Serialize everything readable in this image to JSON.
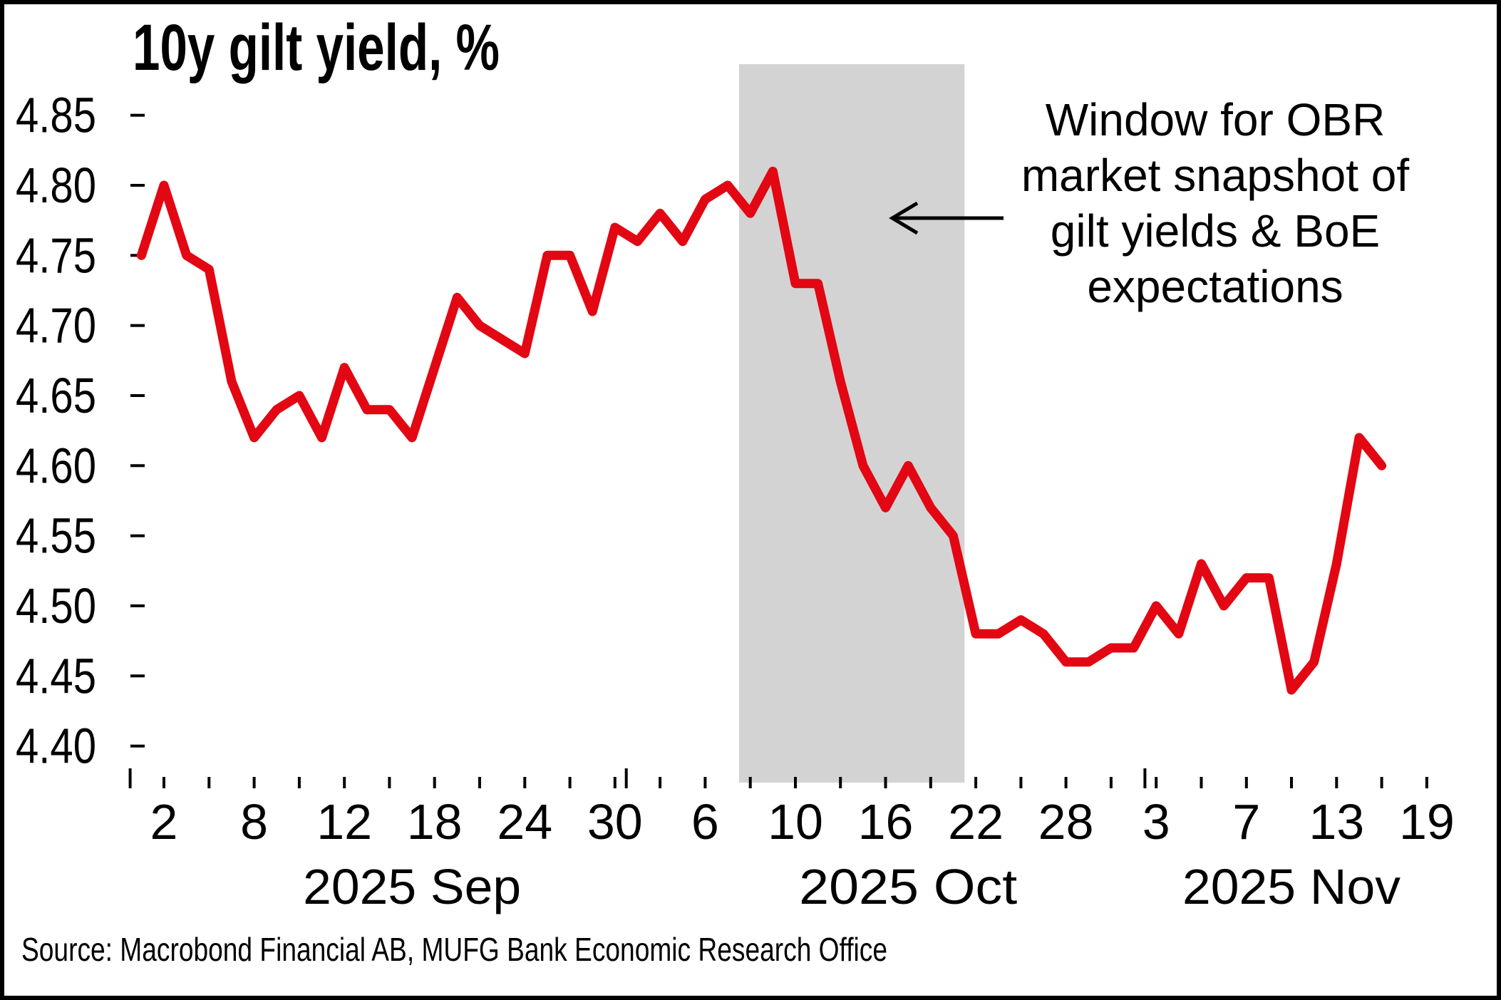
{
  "chart_data": {
    "type": "line",
    "title": "10y gilt yield, %",
    "source": "Source: Macrobond Financial AB, MUFG Bank Economic Research Office",
    "colors": {
      "line": "#e30613",
      "shaded_window": "#d3d3d3",
      "text": "#000000",
      "background": "#ffffff",
      "border": "#000000"
    },
    "ylim": [
      4.38,
      4.89
    ],
    "yticks": [
      4.4,
      4.45,
      4.5,
      4.55,
      4.6,
      4.65,
      4.7,
      4.75,
      4.8,
      4.85
    ],
    "grid": "off",
    "legend": "none",
    "series_name": "10y gilt yield",
    "dates": [
      "2025-09-01",
      "2025-09-02",
      "2025-09-03",
      "2025-09-04",
      "2025-09-05",
      "2025-09-08",
      "2025-09-09",
      "2025-09-10",
      "2025-09-11",
      "2025-09-12",
      "2025-09-15",
      "2025-09-16",
      "2025-09-17",
      "2025-09-18",
      "2025-09-19",
      "2025-09-22",
      "2025-09-23",
      "2025-09-24",
      "2025-09-25",
      "2025-09-26",
      "2025-09-29",
      "2025-09-30",
      "2025-10-01",
      "2025-10-02",
      "2025-10-03",
      "2025-10-06",
      "2025-10-07",
      "2025-10-08",
      "2025-10-09",
      "2025-10-10",
      "2025-10-13",
      "2025-10-14",
      "2025-10-15",
      "2025-10-16",
      "2025-10-17",
      "2025-10-20",
      "2025-10-21",
      "2025-10-22",
      "2025-10-23",
      "2025-10-24",
      "2025-10-27",
      "2025-10-28",
      "2025-10-29",
      "2025-10-30",
      "2025-10-31",
      "2025-11-03",
      "2025-11-04",
      "2025-11-05",
      "2025-11-06",
      "2025-11-07",
      "2025-11-10",
      "2025-11-11",
      "2025-11-12",
      "2025-11-13",
      "2025-11-14",
      "2025-11-17"
    ],
    "values": [
      4.75,
      4.8,
      4.75,
      4.74,
      4.66,
      4.62,
      4.64,
      4.65,
      4.62,
      4.67,
      4.64,
      4.64,
      4.62,
      4.67,
      4.72,
      4.7,
      4.69,
      4.68,
      4.75,
      4.75,
      4.71,
      4.77,
      4.76,
      4.78,
      4.76,
      4.79,
      4.8,
      4.78,
      4.81,
      4.73,
      4.73,
      4.66,
      4.6,
      4.57,
      4.6,
      4.57,
      4.55,
      4.48,
      4.48,
      4.49,
      4.48,
      4.46,
      4.46,
      4.47,
      4.47,
      4.5,
      4.48,
      4.53,
      4.5,
      4.52,
      4.52,
      4.44,
      4.46,
      4.53,
      4.62,
      4.6
    ],
    "xticks": [
      {
        "i": 1,
        "label": "2"
      },
      {
        "i": 5,
        "label": "8"
      },
      {
        "i": 9,
        "label": "12"
      },
      {
        "i": 13,
        "label": "18"
      },
      {
        "i": 17,
        "label": "24"
      },
      {
        "i": 21,
        "label": "30"
      },
      {
        "i": 25,
        "label": "6"
      },
      {
        "i": 29,
        "label": "10"
      },
      {
        "i": 33,
        "label": "16"
      },
      {
        "i": 37,
        "label": "22"
      },
      {
        "i": 41,
        "label": "28"
      },
      {
        "i": 45,
        "label": "3"
      },
      {
        "i": 49,
        "label": "7"
      },
      {
        "i": 53,
        "label": "13"
      },
      {
        "i": 57,
        "label": "19"
      }
    ],
    "minor_tick_every_index": 2,
    "axis_index_count": 58,
    "months": [
      {
        "label": "2025 Sep",
        "center_i": 12
      },
      {
        "label": "2025 Oct",
        "center_i": 34
      },
      {
        "label": "2025 Nov",
        "center_i": 51
      }
    ],
    "month_boundary_ticks_i": [
      -0.5,
      21.5,
      44.5
    ],
    "shaded_region": {
      "from_date": "2025-10-08",
      "to_date": "2025-10-22",
      "from_i": 26.5,
      "to_i": 36.5
    },
    "annotation": {
      "lines": [
        "Window for OBR",
        "market snapshot of",
        "gilt yields & BoE",
        "expectations"
      ],
      "arrow_direction": "left",
      "points_to": "shaded_region"
    }
  }
}
